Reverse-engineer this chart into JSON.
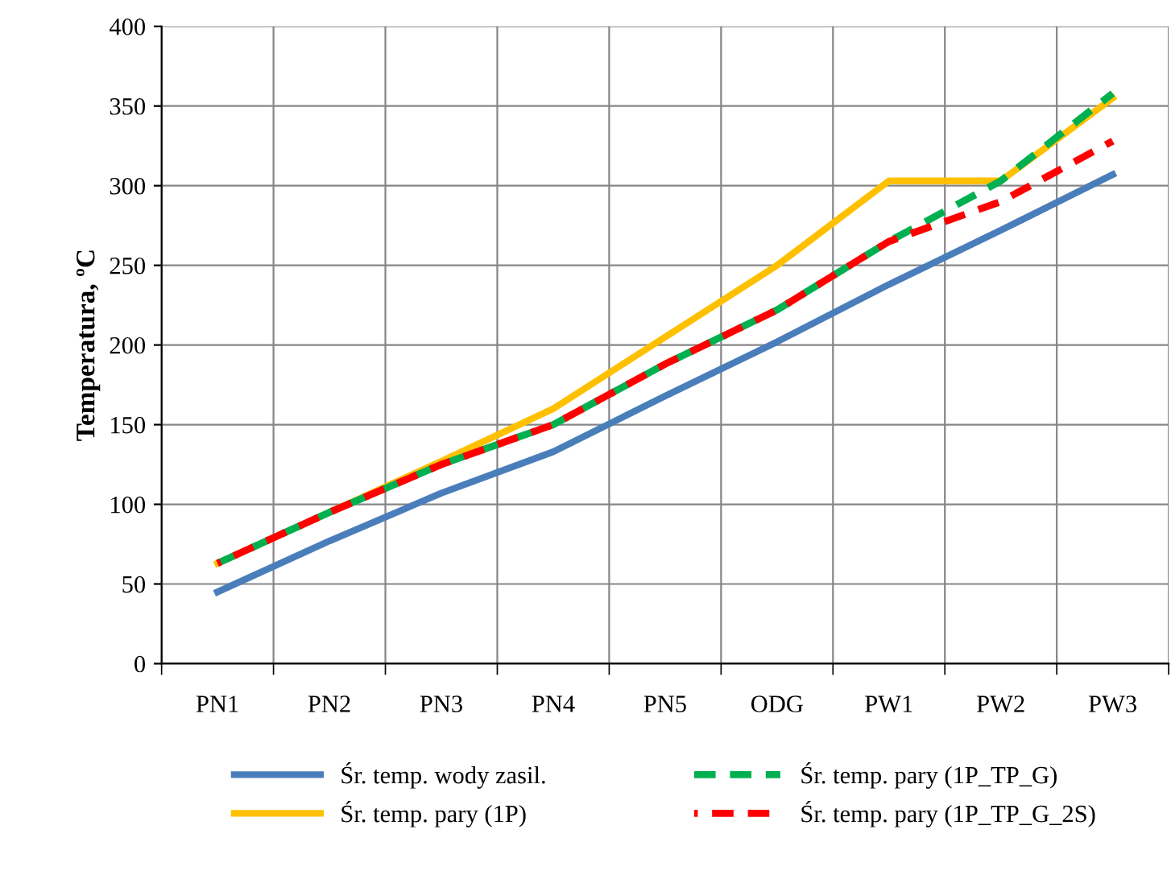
{
  "chart_data": {
    "type": "line",
    "ylabel": "Temperatura, ºC",
    "categories": [
      "PN1",
      "PN2",
      "PN3",
      "PN4",
      "PN5",
      "ODG",
      "PW1",
      "PW2",
      "PW3"
    ],
    "series": [
      {
        "name": "Śr. temp. wody zasil.",
        "color": "#4a7ebb",
        "line_style": "solid",
        "values": [
          45,
          77,
          107,
          133,
          168,
          202,
          238,
          272,
          307
        ]
      },
      {
        "name": "Śr. temp. pary (1P)",
        "color": "#ffc000",
        "line_style": "solid",
        "values": [
          63,
          95,
          127,
          160,
          205,
          250,
          303,
          303,
          355
        ]
      },
      {
        "name": "Śr. temp. pary (1P_TP_G)",
        "color": "#00b050",
        "line_style": "dashed",
        "values": [
          63,
          95,
          125,
          150,
          188,
          222,
          265,
          303,
          358
        ]
      },
      {
        "name": "Śr. temp. pary (1P_TP_G_2S)",
        "color": "#ff0000",
        "line_style": "dashed",
        "values": [
          63,
          95,
          125,
          150,
          188,
          222,
          265,
          290,
          328
        ]
      }
    ],
    "ylim": [
      0,
      400
    ],
    "yticks": [
      0,
      50,
      100,
      150,
      200,
      250,
      300,
      350,
      400
    ],
    "grid": true,
    "legend": "bottom",
    "marker": "none"
  }
}
